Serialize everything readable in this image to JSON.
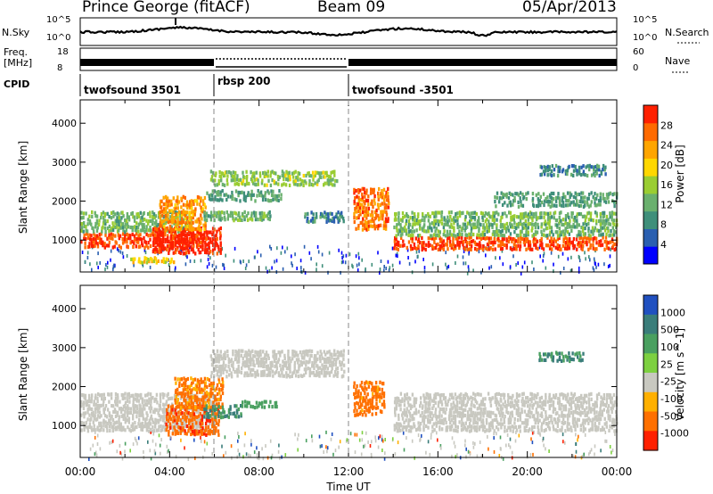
{
  "header": {
    "station": "Prince George (fitACF)",
    "beam": "Beam 09",
    "date": "05/Apr/2013"
  },
  "side_labels": {
    "nsky": "N.Sky",
    "freq_line1": "Freq.",
    "freq_line2": "[MHz]",
    "cpid": "CPID",
    "nsearch": "N.Search",
    "nave": "Nave"
  },
  "nsky_axis": {
    "ticks": [
      "10^5",
      "10^0"
    ]
  },
  "nsearch_axis": {
    "ticks": [
      "10^5",
      "10^0"
    ]
  },
  "freq_axis": {
    "ticks": [
      "18",
      "8"
    ]
  },
  "nave_axis": {
    "ticks": [
      "60",
      "0"
    ]
  },
  "cpid_segments": [
    {
      "label": "twofsound 3501",
      "start_hour": 0,
      "end_hour": 6
    },
    {
      "label": "rbsp 200",
      "start_hour": 6,
      "end_hour": 12
    },
    {
      "label": "twofsound -3501",
      "start_hour": 12,
      "end_hour": 24
    }
  ],
  "chart_data": [
    {
      "type": "heatmap",
      "title": "",
      "xlabel": "Time UT",
      "ylabel": "Slant Range [km]",
      "xlim": [
        0,
        24
      ],
      "ylim": [
        180,
        4600
      ],
      "x_ticks": [
        "00:00",
        "04:00",
        "08:00",
        "12:00",
        "16:00",
        "20:00",
        "00:00"
      ],
      "y_ticks": [
        "1000",
        "2000",
        "3000",
        "4000"
      ],
      "colorbar": {
        "label": "Power [dB]",
        "ticks": [
          "4",
          "8",
          "12",
          "16",
          "20",
          "24",
          "28"
        ],
        "colors": [
          "#0000ff",
          "#2a5fb0",
          "#3f8f7a",
          "#6ab06e",
          "#9acd32",
          "#ffd700",
          "#ffa500",
          "#ff6a00",
          "#ff2000"
        ]
      },
      "bands": [
        {
          "t0": 0.0,
          "t1": 5.5,
          "r0": 850,
          "r1": 1250,
          "value": 26
        },
        {
          "t0": 0.0,
          "t1": 5.0,
          "r0": 1250,
          "r1": 1800,
          "value": 12
        },
        {
          "t0": 3.2,
          "t1": 6.3,
          "r0": 700,
          "r1": 1400,
          "value": 28
        },
        {
          "t0": 3.5,
          "t1": 5.6,
          "r0": 1300,
          "r1": 2200,
          "value": 22
        },
        {
          "t0": 2.2,
          "t1": 4.2,
          "r0": 460,
          "r1": 620,
          "value": 18
        },
        {
          "t0": 5.5,
          "t1": 8.5,
          "r0": 1550,
          "r1": 1800,
          "value": 12
        },
        {
          "t0": 5.8,
          "t1": 11.5,
          "r0": 2450,
          "r1": 2850,
          "value": 14
        },
        {
          "t0": 5.6,
          "t1": 9.0,
          "r0": 2050,
          "r1": 2350,
          "value": 10
        },
        {
          "t0": 10.0,
          "t1": 11.8,
          "r0": 1500,
          "r1": 1800,
          "value": 8
        },
        {
          "t0": 12.2,
          "t1": 13.8,
          "r0": 1300,
          "r1": 2400,
          "value": 24
        },
        {
          "t0": 14.0,
          "t1": 24.0,
          "r0": 800,
          "r1": 1150,
          "value": 26
        },
        {
          "t0": 14.0,
          "t1": 24.0,
          "r0": 1150,
          "r1": 1800,
          "value": 12
        },
        {
          "t0": 18.5,
          "t1": 24.0,
          "r0": 1900,
          "r1": 2300,
          "value": 10
        },
        {
          "t0": 20.5,
          "t1": 23.5,
          "r0": 2700,
          "r1": 3000,
          "value": 8
        }
      ]
    },
    {
      "type": "heatmap",
      "title": "",
      "xlabel": "Time UT",
      "ylabel": "Slant Range [km]",
      "xlim": [
        0,
        24
      ],
      "ylim": [
        180,
        4600
      ],
      "x_ticks": [
        "00:00",
        "04:00",
        "08:00",
        "12:00",
        "16:00",
        "20:00",
        "00:00"
      ],
      "y_ticks": [
        "1000",
        "2000",
        "3000",
        "4000"
      ],
      "colorbar": {
        "label": "Velocity [m s^-1]",
        "ticks": [
          "1000",
          "500",
          "100",
          "25",
          "-25",
          "-100",
          "-500",
          "-1000"
        ],
        "colors": [
          "#2050c0",
          "#3a7d7a",
          "#4aa060",
          "#7dd040",
          "#c8c8c0",
          "#ffb000",
          "#ff7000",
          "#ff2000"
        ]
      },
      "bands": [
        {
          "t0": 0.0,
          "t1": 6.0,
          "r0": 900,
          "r1": 1900,
          "value": 0
        },
        {
          "t0": 3.8,
          "t1": 6.2,
          "r0": 800,
          "r1": 1600,
          "value": -600
        },
        {
          "t0": 4.2,
          "t1": 6.4,
          "r0": 1500,
          "r1": 2300,
          "value": -400
        },
        {
          "t0": 5.5,
          "t1": 7.2,
          "r0": 1250,
          "r1": 1600,
          "value": 300
        },
        {
          "t0": 7.2,
          "t1": 8.8,
          "r0": 1500,
          "r1": 1700,
          "value": 150
        },
        {
          "t0": 5.8,
          "t1": 11.8,
          "r0": 2300,
          "r1": 3000,
          "value": 0
        },
        {
          "t0": 12.2,
          "t1": 13.6,
          "r0": 1300,
          "r1": 2200,
          "value": -500
        },
        {
          "t0": 14.0,
          "t1": 24.0,
          "r0": 900,
          "r1": 1900,
          "value": 0
        },
        {
          "t0": 20.5,
          "t1": 22.5,
          "r0": 2700,
          "r1": 2950,
          "value": 300
        }
      ]
    }
  ]
}
